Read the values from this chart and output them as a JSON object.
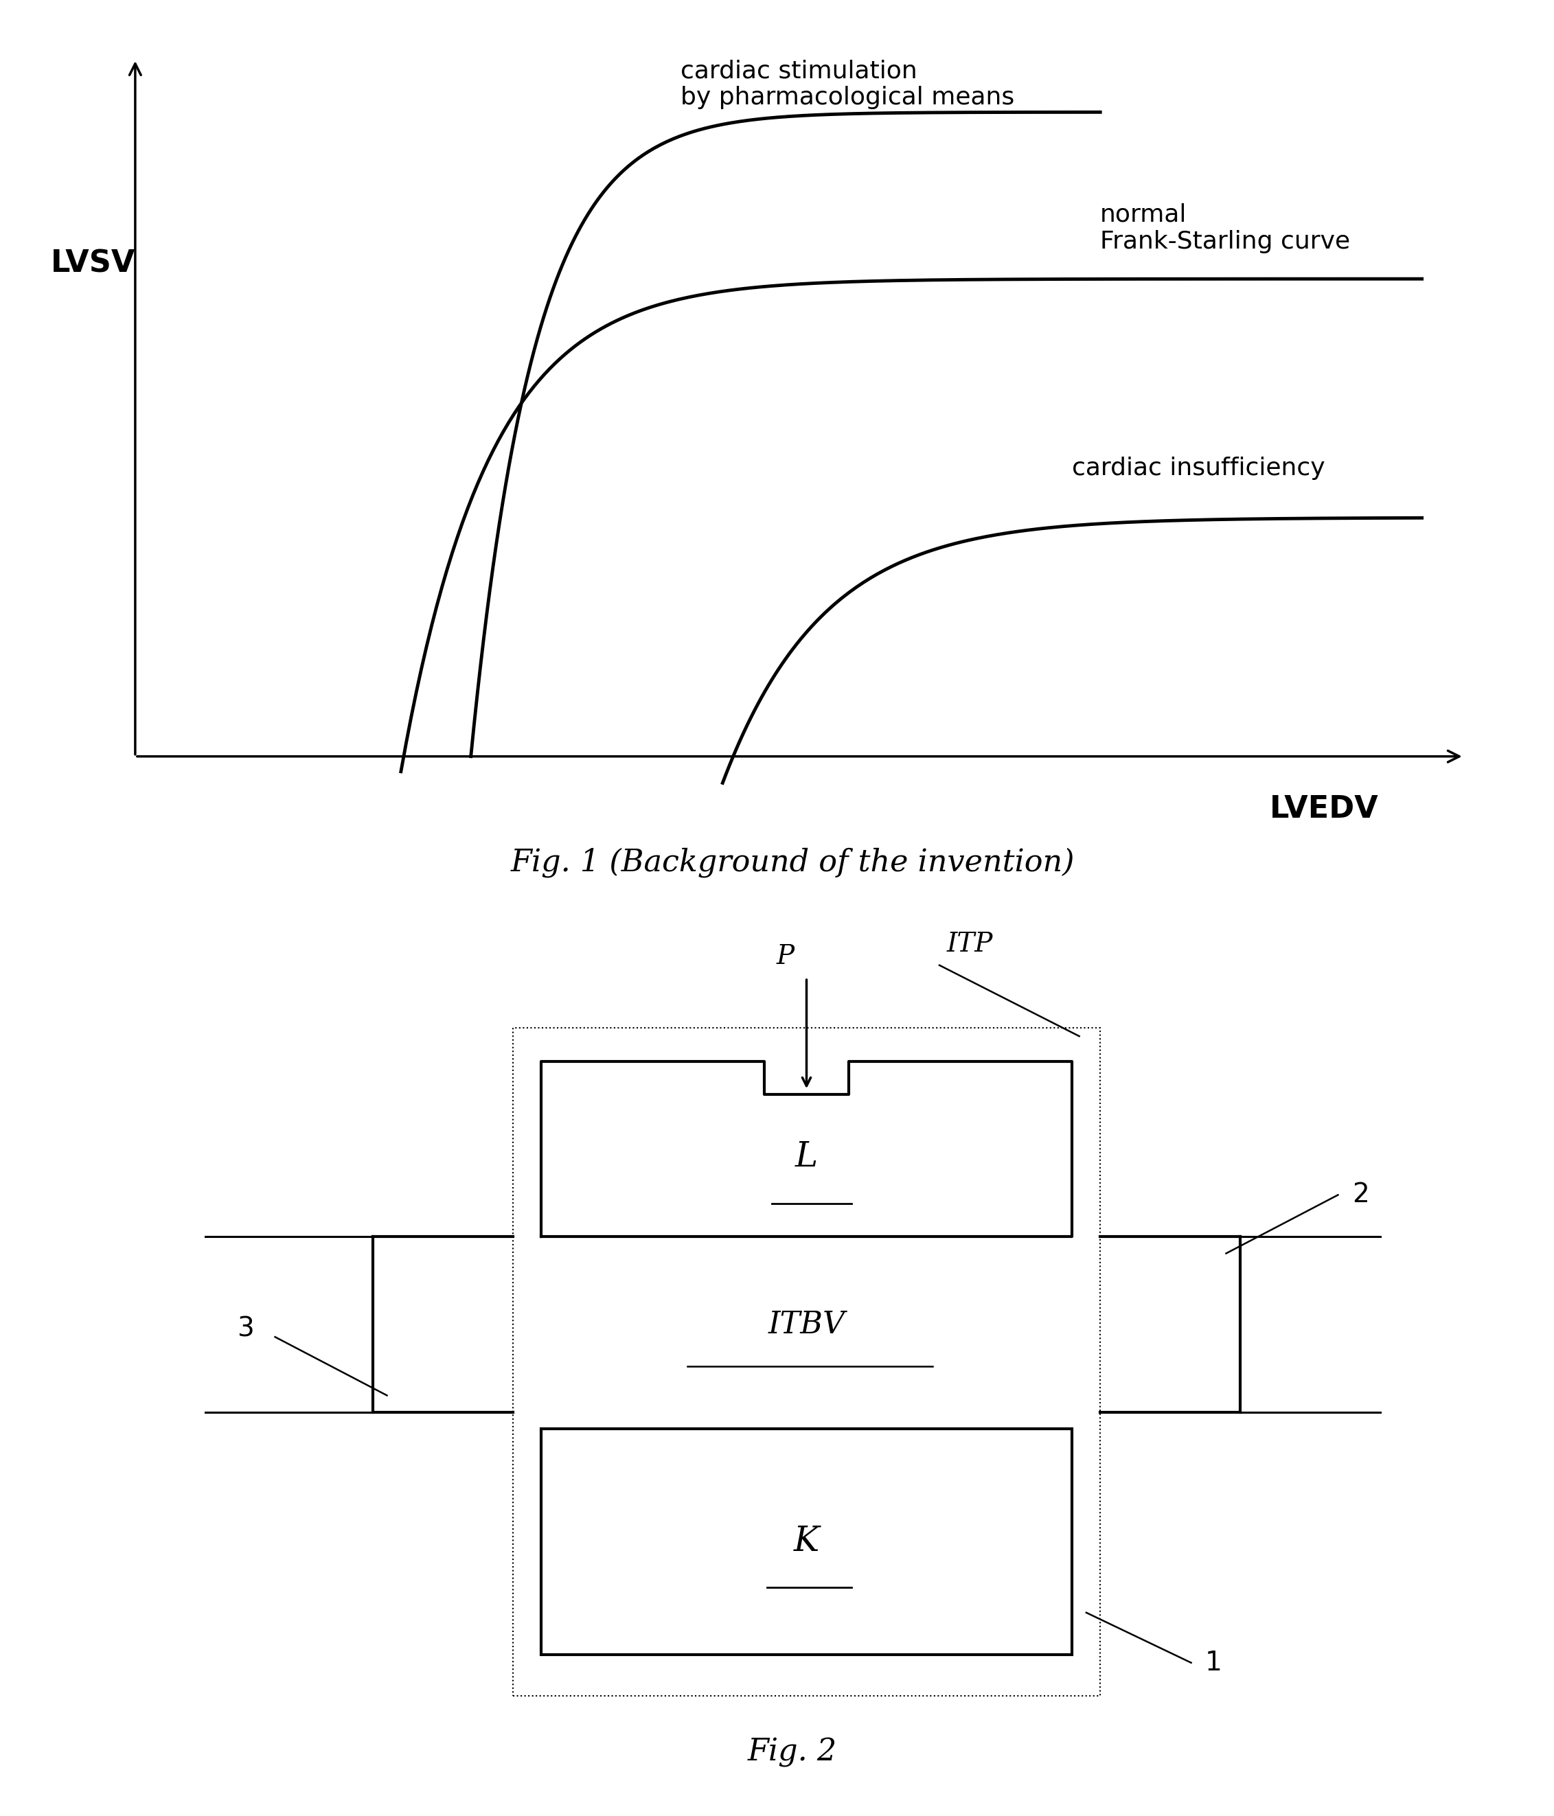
{
  "fig1_title": "Fig. 1 (Background of the invention)",
  "fig2_title": "Fig. 2",
  "curve1_label": "cardiac stimulation\nby pharmacological means",
  "curve2_label": "normal\nFrank-Starling curve",
  "curve3_label": "cardiac insufficiency",
  "xlabel": "LVEDV",
  "ylabel": "LVSV",
  "label_P": "P",
  "label_ITP": "ITP",
  "label_L": "L",
  "label_ITBV": "ITBV",
  "label_K": "K",
  "label_1": "1",
  "label_2": "2",
  "label_3": "3",
  "bg_color": "#ffffff",
  "line_color": "#000000"
}
